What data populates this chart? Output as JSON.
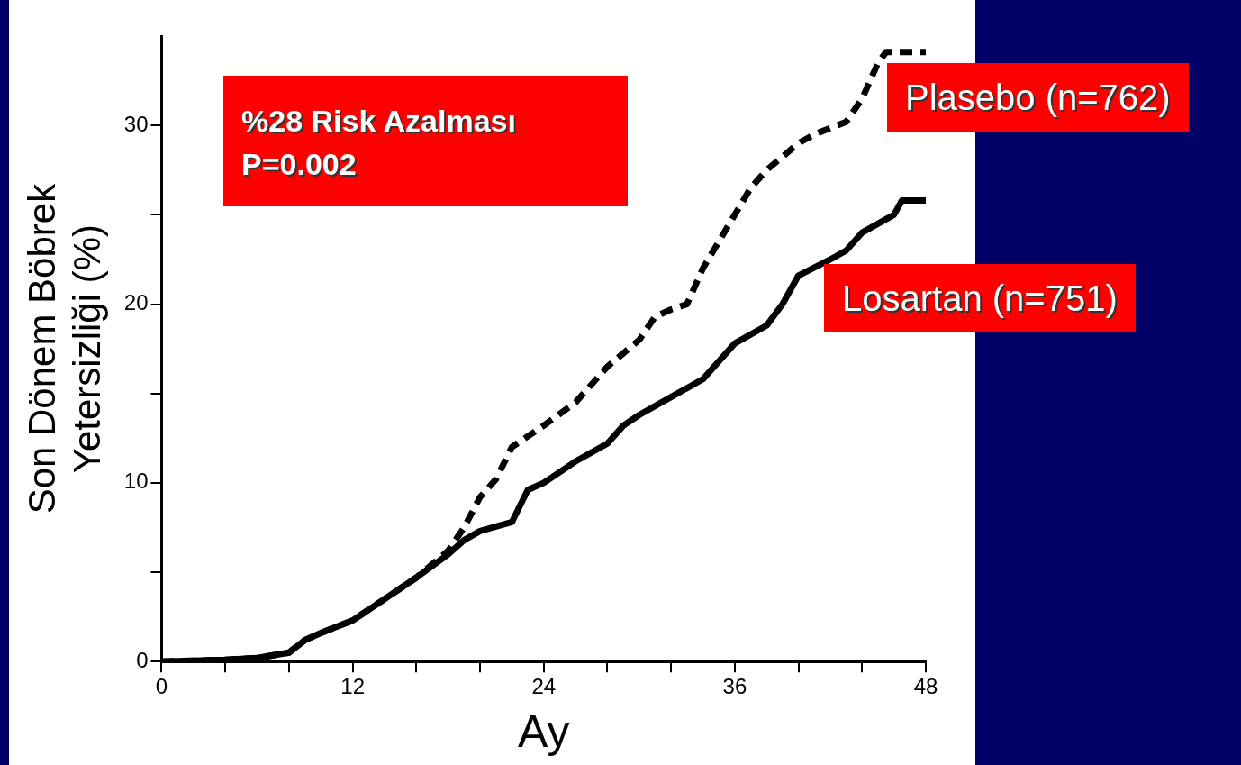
{
  "chart_data": {
    "type": "line",
    "xlabel": "Ay",
    "ylabel": "Son Dönem Böbrek\nYetersizliği (%)",
    "annotations": [
      "%28 Risk Azalması\nP=0.002"
    ],
    "marker": "none",
    "xlim": [
      0,
      48
    ],
    "xticks": [
      0,
      {
        "value": 4,
        "label": null
      },
      {
        "value": 8,
        "label": null
      },
      12,
      {
        "value": 16,
        "label": null
      },
      {
        "value": 20,
        "label": null
      },
      24,
      {
        "value": 28,
        "label": null
      },
      {
        "value": 32,
        "label": null
      },
      36,
      {
        "value": 40,
        "label": null
      },
      {
        "value": 44,
        "label": null
      },
      48
    ],
    "ylim": [
      0,
      35
    ],
    "yticks": [
      0,
      {
        "value": 5,
        "label": null
      },
      10,
      {
        "value": 15,
        "label": null
      },
      20,
      {
        "value": 25,
        "label": null
      },
      30
    ],
    "series": [
      {
        "name": "Plasebo (n=762)",
        "color": "#000000",
        "line_style": "dashed",
        "x": [
          0,
          4,
          6,
          8,
          9,
          10,
          12,
          14,
          16,
          18,
          19,
          20,
          21,
          22,
          24,
          26,
          28,
          30,
          31,
          32,
          33,
          34,
          36,
          37,
          38,
          40,
          41,
          43,
          44,
          45,
          45.5,
          48
        ],
        "values": [
          0,
          0.1,
          0.2,
          0.5,
          1.2,
          1.6,
          2.3,
          3.5,
          4.7,
          6.2,
          7.5,
          9.2,
          10.2,
          12,
          13.2,
          14.5,
          16.5,
          18,
          19.3,
          19.7,
          20,
          22,
          25,
          26.5,
          27.5,
          29,
          29.5,
          30.2,
          31.5,
          33.5,
          34.1,
          34.1
        ]
      },
      {
        "name": "Losartan (n=751)",
        "color": "#000000",
        "line_style": "solid",
        "x": [
          0,
          4,
          6,
          8,
          9,
          10,
          12,
          14,
          16,
          18,
          19,
          20,
          22,
          23,
          24,
          26,
          28,
          29,
          30,
          32,
          34,
          36,
          38,
          39,
          40,
          42,
          43,
          44,
          46,
          46.5,
          48
        ],
        "values": [
          0,
          0.1,
          0.2,
          0.5,
          1.2,
          1.6,
          2.3,
          3.5,
          4.7,
          6,
          6.8,
          7.3,
          7.8,
          9.6,
          10,
          11.2,
          12.2,
          13.2,
          13.8,
          14.8,
          15.8,
          17.8,
          18.8,
          20,
          21.6,
          22.5,
          23,
          24,
          25,
          25.8,
          25.8
        ]
      }
    ]
  }
}
